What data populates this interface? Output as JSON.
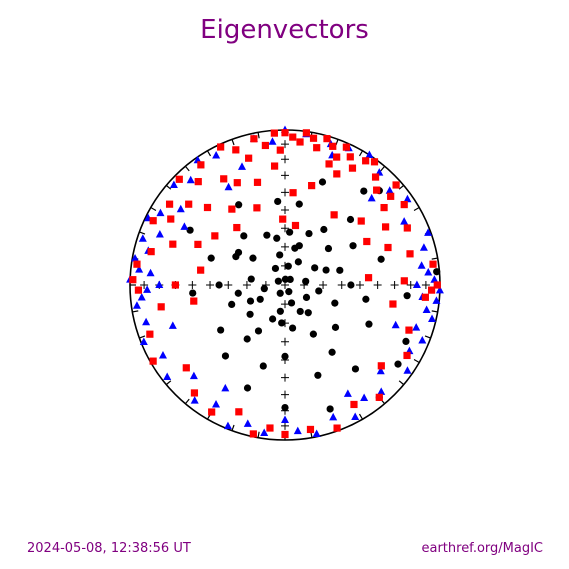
{
  "title": "Eigenvectors",
  "footer": {
    "timestamp": "2024-05-08, 12:38:56 UT",
    "source": "earthref.org/MagIC"
  },
  "colors": {
    "title": "#800080",
    "v1": "#000000",
    "v2": "#0000ff",
    "v3": "#ff0000",
    "net": "#000000"
  },
  "chart_data": {
    "type": "scatter",
    "projection": "equal-area stereonet (declination in degrees, inclination in degrees)",
    "grid": "cross ticks every 10 degrees along N-S and E-W axes",
    "series": [
      {
        "marker": "circle",
        "color": "#000000",
        "points": [
          [
            4,
            87
          ],
          [
            43,
            86
          ],
          [
            150,
            86
          ],
          [
            210,
            85
          ],
          [
            300,
            86
          ],
          [
            10,
            80
          ],
          [
            80,
            79
          ],
          [
            160,
            80
          ],
          [
            260,
            79
          ],
          [
            330,
            80
          ],
          [
            30,
            76
          ],
          [
            120,
            77
          ],
          [
            190,
            76
          ],
          [
            240,
            75
          ],
          [
            350,
            74
          ],
          [
            60,
            72
          ],
          [
            100,
            72
          ],
          [
            140,
            71
          ],
          [
            200,
            71
          ],
          [
            280,
            72
          ],
          [
            20,
            68
          ],
          [
            70,
            67
          ],
          [
            170,
            67
          ],
          [
            230,
            66
          ],
          [
            310,
            68
          ],
          [
            5,
            62
          ],
          [
            50,
            60
          ],
          [
            110,
            62
          ],
          [
            150,
            60
          ],
          [
            250,
            60
          ],
          [
            300,
            60
          ],
          [
            340,
            62
          ],
          [
            35,
            54
          ],
          [
            90,
            55
          ],
          [
            130,
            55
          ],
          [
            180,
            52
          ],
          [
            215,
            55
          ],
          [
            270,
            55
          ],
          [
            320,
            56
          ],
          [
            10,
            46
          ],
          [
            60,
            48
          ],
          [
            100,
            46
          ],
          [
            145,
            46
          ],
          [
            195,
            45
          ],
          [
            235,
            48
          ],
          [
            290,
            48
          ],
          [
            355,
            45
          ],
          [
            45,
            40
          ],
          [
            115,
            40
          ],
          [
            160,
            38
          ],
          [
            220,
            40
          ],
          [
            265,
            40
          ],
          [
            330,
            40
          ],
          [
            75,
            36
          ],
          [
            140,
            30
          ],
          [
            200,
            30
          ],
          [
            300,
            30
          ],
          [
            20,
            30
          ],
          [
            180,
            22
          ],
          [
            125,
            12
          ],
          [
            40,
            22
          ],
          [
            95,
            22
          ],
          [
            160,
            16
          ],
          [
            140,
            6
          ],
          [
            115,
            15
          ],
          [
            85,
            2
          ],
          [
            45,
            15
          ],
          [
            305,
            60
          ],
          [
            260,
            65
          ],
          [
            15,
            70
          ],
          [
            25,
            60
          ],
          [
            210,
            62
          ],
          [
            245,
            70
          ],
          [
            150,
            74
          ],
          [
            350,
            65
          ],
          [
            75,
            60
          ],
          [
            185,
            70
          ]
        ]
      },
      {
        "marker": "triangle",
        "color": "#0000ff",
        "points": [
          [
            0,
            0
          ],
          [
            8,
            2
          ],
          [
            18,
            5
          ],
          [
            25,
            3
          ],
          [
            33,
            0
          ],
          [
            40,
            6
          ],
          [
            48,
            10
          ],
          [
            55,
            4
          ],
          [
            62,
            14
          ],
          [
            70,
            2
          ],
          [
            75,
            8
          ],
          [
            82,
            12
          ],
          [
            88,
            4
          ],
          [
            92,
            0
          ],
          [
            96,
            2
          ],
          [
            100,
            8
          ],
          [
            103,
            3
          ],
          [
            108,
            12
          ],
          [
            112,
            5
          ],
          [
            118,
            10
          ],
          [
            125,
            4
          ],
          [
            132,
            18
          ],
          [
            138,
            8
          ],
          [
            145,
            12
          ],
          [
            152,
            4
          ],
          [
            160,
            10
          ],
          [
            168,
            2
          ],
          [
            175,
            6
          ],
          [
            180,
            14
          ],
          [
            188,
            4
          ],
          [
            195,
            8
          ],
          [
            202,
            2
          ],
          [
            210,
            12
          ],
          [
            218,
            6
          ],
          [
            225,
            18
          ],
          [
            232,
            4
          ],
          [
            240,
            10
          ],
          [
            248,
            2
          ],
          [
            255,
            8
          ],
          [
            262,
            4
          ],
          [
            268,
            12
          ],
          [
            272,
            0
          ],
          [
            276,
            6
          ],
          [
            280,
            2
          ],
          [
            284,
            10
          ],
          [
            288,
            4
          ],
          [
            292,
            14
          ],
          [
            296,
            2
          ],
          [
            300,
            8
          ],
          [
            306,
            18
          ],
          [
            312,
            4
          ],
          [
            318,
            10
          ],
          [
            325,
            2
          ],
          [
            332,
            6
          ],
          [
            340,
            20
          ],
          [
            348,
            4
          ],
          [
            355,
            8
          ],
          [
            45,
            22
          ],
          [
            110,
            25
          ],
          [
            150,
            20
          ],
          [
            210,
            24
          ],
          [
            250,
            24
          ],
          [
            300,
            26
          ],
          [
            330,
            28
          ],
          [
            20,
            12
          ],
          [
            90,
            16
          ],
          [
            270,
            20
          ],
          [
            85,
            8
          ],
          [
            275,
            14
          ],
          [
            95,
            12
          ],
          [
            265,
            8
          ]
        ]
      },
      {
        "marker": "square",
        "color": "#ff0000",
        "points": [
          [
            0,
            2
          ],
          [
            3,
            5
          ],
          [
            6,
            8
          ],
          [
            8,
            1
          ],
          [
            11,
            4
          ],
          [
            13,
            10
          ],
          [
            16,
            2
          ],
          [
            19,
            6
          ],
          [
            22,
            12
          ],
          [
            24,
            3
          ],
          [
            27,
            8
          ],
          [
            30,
            14
          ],
          [
            33,
            5
          ],
          [
            36,
            2
          ],
          [
            40,
            10
          ],
          [
            44,
            16
          ],
          [
            48,
            4
          ],
          [
            52,
            20
          ],
          [
            56,
            8
          ],
          [
            60,
            26
          ],
          [
            65,
            14
          ],
          [
            70,
            30
          ],
          [
            76,
            18
          ],
          [
            82,
            4
          ],
          [
            88,
            24
          ],
          [
            95,
            10
          ],
          [
            100,
            30
          ],
          [
            110,
            16
          ],
          [
            120,
            10
          ],
          [
            130,
            20
          ],
          [
            140,
            6
          ],
          [
            150,
            12
          ],
          [
            160,
            2
          ],
          [
            170,
            6
          ],
          [
            180,
            4
          ],
          [
            186,
            8
          ],
          [
            192,
            2
          ],
          [
            200,
            14
          ],
          [
            210,
            6
          ],
          [
            220,
            10
          ],
          [
            230,
            18
          ],
          [
            240,
            2
          ],
          [
            250,
            8
          ],
          [
            260,
            20
          ],
          [
            270,
            30
          ],
          [
            278,
            4
          ],
          [
            284,
            12
          ],
          [
            290,
            24
          ],
          [
            296,
            6
          ],
          [
            300,
            16
          ],
          [
            305,
            10
          ],
          [
            310,
            20
          ],
          [
            315,
            4
          ],
          [
            320,
            14
          ],
          [
            325,
            6
          ],
          [
            330,
            22
          ],
          [
            335,
            2
          ],
          [
            340,
            8
          ],
          [
            344,
            16
          ],
          [
            348,
            4
          ],
          [
            352,
            10
          ],
          [
            356,
            2
          ],
          [
            358,
            14
          ],
          [
            355,
            24
          ],
          [
            345,
            32
          ],
          [
            335,
            28
          ],
          [
            325,
            40
          ],
          [
            315,
            30
          ],
          [
            305,
            44
          ],
          [
            25,
            22
          ],
          [
            15,
            34
          ],
          [
            5,
            40
          ],
          [
            35,
            44
          ],
          [
            50,
            36
          ],
          [
            62,
            40
          ],
          [
            340,
            46
          ],
          [
            320,
            50
          ],
          [
            358,
            55
          ],
          [
            10,
            58
          ],
          [
            295,
            38
          ],
          [
            280,
            44
          ],
          [
            260,
            40
          ],
          [
            85,
            45
          ],
          [
            92,
            6
          ],
          [
            268,
            6
          ],
          [
            272,
            2
          ],
          [
            90,
            2
          ],
          [
            20,
            18
          ],
          [
            50,
            12
          ]
        ]
      }
    ]
  }
}
